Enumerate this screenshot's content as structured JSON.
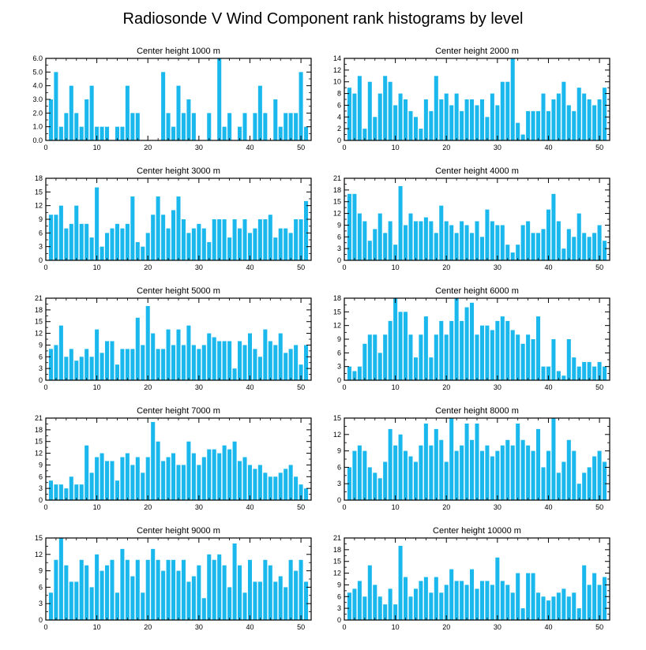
{
  "title": "Radiosonde V Wind Component rank histograms by level",
  "colors": {
    "bar": "#1AB8EC",
    "axis": "#000000",
    "background": "#ffffff"
  },
  "chart_data": [
    {
      "type": "bar",
      "title": "Center height 1000 m",
      "xlim": [
        0,
        52
      ],
      "ylim": [
        0,
        6
      ],
      "xticks": [
        0,
        10,
        20,
        30,
        40,
        50
      ],
      "yticks": [
        0,
        1,
        2,
        3,
        4,
        5,
        6
      ],
      "ytick_labels": [
        "0.0",
        "1.0",
        "2.0",
        "3.0",
        "4.0",
        "5.0",
        "6.0"
      ],
      "x": [
        1,
        2,
        3,
        4,
        5,
        6,
        7,
        8,
        9,
        10,
        11,
        12,
        13,
        14,
        15,
        16,
        17,
        18,
        19,
        20,
        21,
        22,
        23,
        24,
        25,
        26,
        27,
        28,
        29,
        30,
        31,
        32,
        33,
        34,
        35,
        36,
        37,
        38,
        39,
        40,
        41,
        42,
        43,
        44,
        45,
        46,
        47,
        48,
        49,
        50,
        51
      ],
      "values": [
        3,
        5,
        1,
        2,
        4,
        2,
        1,
        3,
        4,
        1,
        1,
        1,
        0,
        1,
        1,
        4,
        2,
        2,
        0,
        0,
        0,
        0,
        5,
        2,
        1,
        4,
        2,
        3,
        2,
        0,
        0,
        2,
        0,
        6,
        1,
        2,
        0,
        1,
        2,
        0,
        2,
        4,
        2,
        0,
        3,
        1,
        2,
        2,
        2,
        5,
        1
      ]
    },
    {
      "type": "bar",
      "title": "Center height 2000 m",
      "xlim": [
        0,
        52
      ],
      "ylim": [
        0,
        14
      ],
      "xticks": [
        0,
        10,
        20,
        30,
        40,
        50
      ],
      "yticks": [
        0,
        2,
        4,
        6,
        8,
        10,
        12,
        14
      ],
      "ytick_labels": [
        "0",
        "2",
        "4",
        "6",
        "8",
        "10",
        "12",
        "14"
      ],
      "x": [
        1,
        2,
        3,
        4,
        5,
        6,
        7,
        8,
        9,
        10,
        11,
        12,
        13,
        14,
        15,
        16,
        17,
        18,
        19,
        20,
        21,
        22,
        23,
        24,
        25,
        26,
        27,
        28,
        29,
        30,
        31,
        32,
        33,
        34,
        35,
        36,
        37,
        38,
        39,
        40,
        41,
        42,
        43,
        44,
        45,
        46,
        47,
        48,
        49,
        50,
        51
      ],
      "values": [
        9,
        8,
        11,
        2,
        10,
        4,
        8,
        11,
        10,
        6,
        8,
        7,
        5,
        4,
        2,
        7,
        5,
        11,
        7,
        8,
        6,
        8,
        5,
        7,
        7,
        6,
        7,
        4,
        8,
        6,
        10,
        10,
        14,
        3,
        1,
        5,
        5,
        5,
        8,
        5,
        7,
        8,
        10,
        6,
        5,
        9,
        8,
        7,
        6,
        7,
        9
      ]
    },
    {
      "type": "bar",
      "title": "Center height 3000 m",
      "xlim": [
        0,
        52
      ],
      "ylim": [
        0,
        18
      ],
      "xticks": [
        0,
        10,
        20,
        30,
        40,
        50
      ],
      "yticks": [
        0,
        3,
        6,
        9,
        12,
        15,
        18
      ],
      "ytick_labels": [
        "0",
        "3",
        "6",
        "9",
        "12",
        "15",
        "18"
      ],
      "x": [
        1,
        2,
        3,
        4,
        5,
        6,
        7,
        8,
        9,
        10,
        11,
        12,
        13,
        14,
        15,
        16,
        17,
        18,
        19,
        20,
        21,
        22,
        23,
        24,
        25,
        26,
        27,
        28,
        29,
        30,
        31,
        32,
        33,
        34,
        35,
        36,
        37,
        38,
        39,
        40,
        41,
        42,
        43,
        44,
        45,
        46,
        47,
        48,
        49,
        50,
        51
      ],
      "values": [
        10,
        10,
        12,
        7,
        8,
        12,
        8,
        8,
        5,
        16,
        3,
        6,
        7,
        8,
        7,
        8,
        14,
        4,
        3,
        6,
        10,
        14,
        10,
        7,
        11,
        14,
        9,
        6,
        7,
        8,
        7,
        4,
        9,
        9,
        9,
        5,
        9,
        7,
        9,
        6,
        7,
        9,
        9,
        10,
        5,
        7,
        7,
        6,
        9,
        9,
        13
      ]
    },
    {
      "type": "bar",
      "title": "Center height 4000 m",
      "xlim": [
        0,
        52
      ],
      "ylim": [
        0,
        21
      ],
      "xticks": [
        0,
        10,
        20,
        30,
        40,
        50
      ],
      "yticks": [
        0,
        3,
        6,
        9,
        12,
        15,
        18,
        21
      ],
      "ytick_labels": [
        "0",
        "3",
        "6",
        "9",
        "12",
        "15",
        "18",
        "21"
      ],
      "x": [
        1,
        2,
        3,
        4,
        5,
        6,
        7,
        8,
        9,
        10,
        11,
        12,
        13,
        14,
        15,
        16,
        17,
        18,
        19,
        20,
        21,
        22,
        23,
        24,
        25,
        26,
        27,
        28,
        29,
        30,
        31,
        32,
        33,
        34,
        35,
        36,
        37,
        38,
        39,
        40,
        41,
        42,
        43,
        44,
        45,
        46,
        47,
        48,
        49,
        50,
        51
      ],
      "values": [
        17,
        17,
        12,
        10,
        5,
        8,
        12,
        7,
        10,
        4,
        19,
        9,
        12,
        10,
        10,
        11,
        10,
        7,
        14,
        10,
        9,
        7,
        10,
        9,
        7,
        10,
        6,
        13,
        10,
        9,
        9,
        4,
        2,
        4,
        9,
        10,
        7,
        7,
        8,
        13,
        17,
        10,
        3,
        8,
        6,
        12,
        7,
        6,
        7,
        9,
        5
      ]
    },
    {
      "type": "bar",
      "title": "Center height 5000 m",
      "xlim": [
        0,
        52
      ],
      "ylim": [
        0,
        21
      ],
      "xticks": [
        0,
        10,
        20,
        30,
        40,
        50
      ],
      "yticks": [
        0,
        3,
        6,
        9,
        12,
        15,
        18,
        21
      ],
      "ytick_labels": [
        "0",
        "3",
        "6",
        "9",
        "12",
        "15",
        "18",
        "21"
      ],
      "x": [
        1,
        2,
        3,
        4,
        5,
        6,
        7,
        8,
        9,
        10,
        11,
        12,
        13,
        14,
        15,
        16,
        17,
        18,
        19,
        20,
        21,
        22,
        23,
        24,
        25,
        26,
        27,
        28,
        29,
        30,
        31,
        32,
        33,
        34,
        35,
        36,
        37,
        38,
        39,
        40,
        41,
        42,
        43,
        44,
        45,
        46,
        47,
        48,
        49,
        50,
        51
      ],
      "values": [
        8,
        9,
        14,
        6,
        8,
        5,
        6,
        8,
        6,
        13,
        7,
        10,
        10,
        4,
        8,
        8,
        8,
        16,
        9,
        19,
        12,
        8,
        8,
        13,
        9,
        13,
        9,
        14,
        9,
        8,
        9,
        12,
        11,
        10,
        10,
        10,
        3,
        10,
        9,
        12,
        8,
        6,
        13,
        10,
        9,
        12,
        7,
        8,
        9,
        4,
        9
      ]
    },
    {
      "type": "bar",
      "title": "Center height 6000 m",
      "xlim": [
        0,
        52
      ],
      "ylim": [
        0,
        18
      ],
      "xticks": [
        0,
        10,
        20,
        30,
        40,
        50
      ],
      "yticks": [
        0,
        3,
        6,
        9,
        12,
        15,
        18
      ],
      "ytick_labels": [
        "0",
        "3",
        "6",
        "9",
        "12",
        "15",
        "18"
      ],
      "x": [
        1,
        2,
        3,
        4,
        5,
        6,
        7,
        8,
        9,
        10,
        11,
        12,
        13,
        14,
        15,
        16,
        17,
        18,
        19,
        20,
        21,
        22,
        23,
        24,
        25,
        26,
        27,
        28,
        29,
        30,
        31,
        32,
        33,
        34,
        35,
        36,
        37,
        38,
        39,
        40,
        41,
        42,
        43,
        44,
        45,
        46,
        47,
        48,
        49,
        50,
        51
      ],
      "values": [
        3,
        2,
        3,
        8,
        10,
        10,
        6,
        10,
        13,
        18,
        15,
        15,
        10,
        5,
        10,
        14,
        5,
        10,
        13,
        10,
        13,
        18,
        13,
        16,
        17,
        10,
        12,
        12,
        11,
        13,
        14,
        13,
        11,
        10,
        8,
        10,
        9,
        14,
        3,
        3,
        9,
        2,
        1,
        9,
        5,
        3,
        4,
        4,
        3,
        4,
        3
      ]
    },
    {
      "type": "bar",
      "title": "Center height 7000 m",
      "xlim": [
        0,
        52
      ],
      "ylim": [
        0,
        21
      ],
      "xticks": [
        0,
        10,
        20,
        30,
        40,
        50
      ],
      "yticks": [
        0,
        3,
        6,
        9,
        12,
        15,
        18,
        21
      ],
      "ytick_labels": [
        "0",
        "3",
        "6",
        "9",
        "12",
        "15",
        "18",
        "21"
      ],
      "x": [
        1,
        2,
        3,
        4,
        5,
        6,
        7,
        8,
        9,
        10,
        11,
        12,
        13,
        14,
        15,
        16,
        17,
        18,
        19,
        20,
        21,
        22,
        23,
        24,
        25,
        26,
        27,
        28,
        29,
        30,
        31,
        32,
        33,
        34,
        35,
        36,
        37,
        38,
        39,
        40,
        41,
        42,
        43,
        44,
        45,
        46,
        47,
        48,
        49,
        50,
        51
      ],
      "values": [
        5,
        4,
        4,
        3,
        6,
        4,
        4,
        14,
        7,
        11,
        12,
        10,
        10,
        5,
        11,
        12,
        9,
        11,
        7,
        11,
        20,
        15,
        10,
        11,
        12,
        9,
        9,
        15,
        12,
        9,
        11,
        13,
        13,
        12,
        14,
        13,
        15,
        10,
        11,
        9,
        8,
        9,
        7,
        6,
        6,
        7,
        8,
        9,
        6,
        4,
        3
      ]
    },
    {
      "type": "bar",
      "title": "Center height 8000 m",
      "xlim": [
        0,
        52
      ],
      "ylim": [
        0,
        15
      ],
      "xticks": [
        0,
        10,
        20,
        30,
        40,
        50
      ],
      "yticks": [
        0,
        3,
        6,
        9,
        12,
        15
      ],
      "ytick_labels": [
        "0",
        "3",
        "6",
        "9",
        "12",
        "15"
      ],
      "x": [
        1,
        2,
        3,
        4,
        5,
        6,
        7,
        8,
        9,
        10,
        11,
        12,
        13,
        14,
        15,
        16,
        17,
        18,
        19,
        20,
        21,
        22,
        23,
        24,
        25,
        26,
        27,
        28,
        29,
        30,
        31,
        32,
        33,
        34,
        35,
        36,
        37,
        38,
        39,
        40,
        41,
        42,
        43,
        44,
        45,
        46,
        47,
        48,
        49,
        50,
        51
      ],
      "values": [
        6,
        9,
        10,
        9,
        6,
        5,
        4,
        7,
        13,
        10,
        12,
        9,
        8,
        7,
        10,
        14,
        10,
        13,
        11,
        7,
        15,
        9,
        10,
        14,
        11,
        14,
        9,
        10,
        8,
        9,
        10,
        11,
        10,
        14,
        11,
        10,
        9,
        13,
        6,
        9,
        15,
        5,
        7,
        11,
        9,
        3,
        5,
        6,
        8,
        9,
        7
      ]
    },
    {
      "type": "bar",
      "title": "Center height 9000 m",
      "xlim": [
        0,
        52
      ],
      "ylim": [
        0,
        15
      ],
      "xticks": [
        0,
        10,
        20,
        30,
        40,
        50
      ],
      "yticks": [
        0,
        3,
        6,
        9,
        12,
        15
      ],
      "ytick_labels": [
        "0",
        "3",
        "6",
        "9",
        "12",
        "15"
      ],
      "x": [
        1,
        2,
        3,
        4,
        5,
        6,
        7,
        8,
        9,
        10,
        11,
        12,
        13,
        14,
        15,
        16,
        17,
        18,
        19,
        20,
        21,
        22,
        23,
        24,
        25,
        26,
        27,
        28,
        29,
        30,
        31,
        32,
        33,
        34,
        35,
        36,
        37,
        38,
        39,
        40,
        41,
        42,
        43,
        44,
        45,
        46,
        47,
        48,
        49,
        50,
        51
      ],
      "values": [
        5,
        11,
        15,
        10,
        7,
        7,
        11,
        10,
        6,
        12,
        9,
        10,
        11,
        5,
        13,
        11,
        8,
        11,
        5,
        11,
        13,
        11,
        9,
        11,
        11,
        9,
        11,
        7,
        8,
        10,
        4,
        12,
        11,
        12,
        10,
        6,
        14,
        10,
        5,
        11,
        7,
        7,
        11,
        10,
        7,
        8,
        6,
        11,
        9,
        11,
        7
      ]
    },
    {
      "type": "bar",
      "title": "Center height 10000 m",
      "xlim": [
        0,
        52
      ],
      "ylim": [
        0,
        21
      ],
      "xticks": [
        0,
        10,
        20,
        30,
        40,
        50
      ],
      "yticks": [
        0,
        3,
        6,
        9,
        12,
        15,
        18,
        21
      ],
      "ytick_labels": [
        "0",
        "3",
        "6",
        "9",
        "12",
        "15",
        "18",
        "21"
      ],
      "x": [
        1,
        2,
        3,
        4,
        5,
        6,
        7,
        8,
        9,
        10,
        11,
        12,
        13,
        14,
        15,
        16,
        17,
        18,
        19,
        20,
        21,
        22,
        23,
        24,
        25,
        26,
        27,
        28,
        29,
        30,
        31,
        32,
        33,
        34,
        35,
        36,
        37,
        38,
        39,
        40,
        41,
        42,
        43,
        44,
        45,
        46,
        47,
        48,
        49,
        50,
        51
      ],
      "values": [
        7,
        8,
        10,
        6,
        14,
        9,
        6,
        4,
        8,
        4,
        19,
        11,
        6,
        8,
        10,
        11,
        7,
        11,
        7,
        9,
        13,
        10,
        10,
        9,
        13,
        8,
        10,
        10,
        9,
        16,
        10,
        9,
        7,
        12,
        3,
        12,
        12,
        7,
        6,
        5,
        6,
        7,
        8,
        6,
        7,
        3,
        14,
        9,
        12,
        9,
        11
      ]
    }
  ]
}
